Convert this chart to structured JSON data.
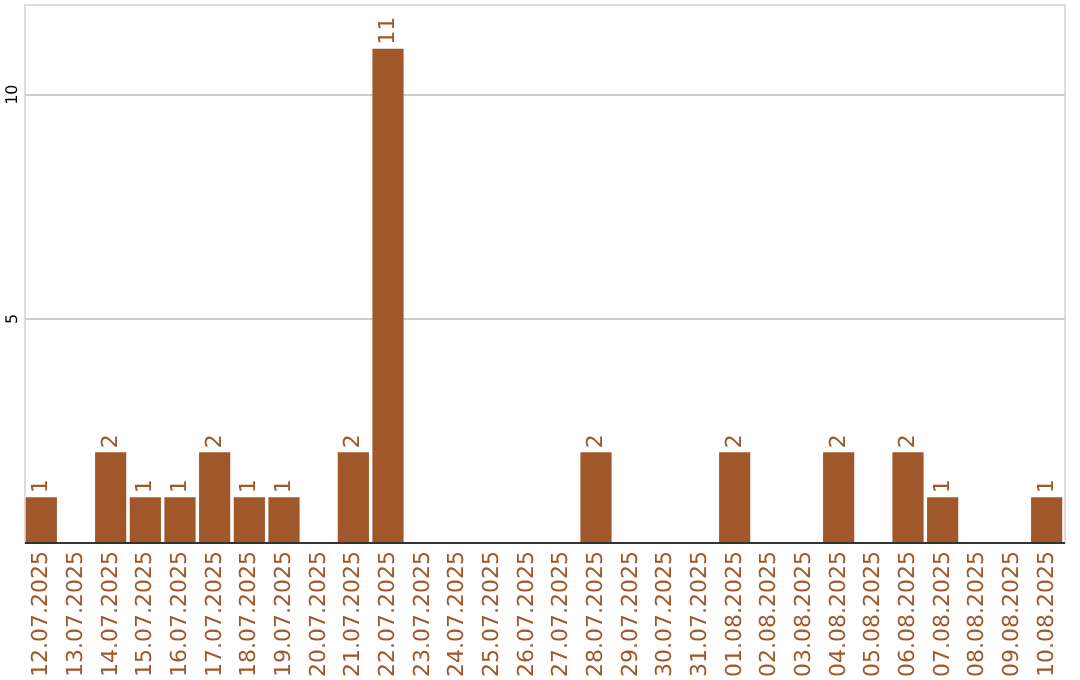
{
  "chart_data": {
    "type": "bar",
    "categories": [
      "12.07.2025",
      "13.07.2025",
      "14.07.2025",
      "15.07.2025",
      "16.07.2025",
      "17.07.2025",
      "18.07.2025",
      "19.07.2025",
      "20.07.2025",
      "21.07.2025",
      "22.07.2025",
      "23.07.2025",
      "24.07.2025",
      "25.07.2025",
      "26.07.2025",
      "27.07.2025",
      "28.07.2025",
      "29.07.2025",
      "30.07.2025",
      "31.07.2025",
      "01.08.2025",
      "02.08.2025",
      "03.08.2025",
      "04.08.2025",
      "05.08.2025",
      "06.08.2025",
      "07.08.2025",
      "08.08.2025",
      "09.08.2025",
      "10.08.2025"
    ],
    "values": [
      1,
      null,
      2,
      1,
      1,
      2,
      1,
      1,
      null,
      2,
      11,
      null,
      null,
      null,
      null,
      null,
      2,
      null,
      null,
      null,
      2,
      null,
      null,
      2,
      null,
      2,
      1,
      null,
      null,
      1
    ],
    "data_labels": true,
    "color": "#a0572a",
    "ylim": [
      0,
      12
    ],
    "yticks": [
      5,
      10
    ],
    "grid": "y"
  }
}
